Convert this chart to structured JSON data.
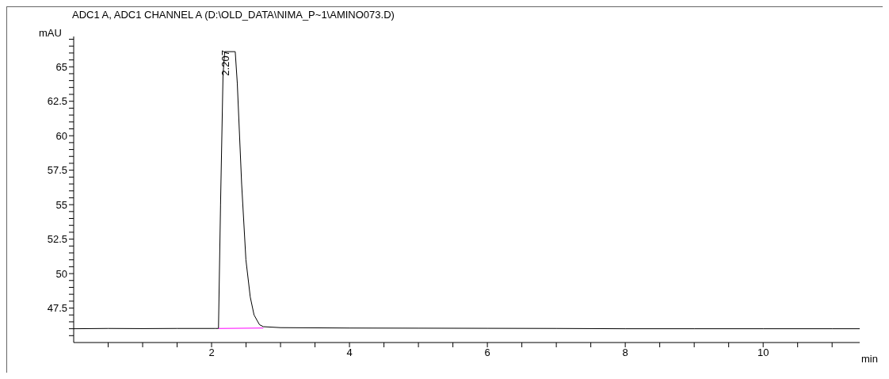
{
  "chart_data": {
    "type": "line",
    "title": "ADC1 A, ADC1 CHANNEL A (D:\\OLD_DATA\\NIMA_P~1\\AMINO073.D)",
    "xlabel": "min",
    "ylabel": "mAU",
    "series": [
      {
        "color": "#000000",
        "x": [
          0,
          0.5,
          1,
          1.5,
          2,
          2.05,
          2.1,
          2.13,
          2.166,
          2.19,
          2.343,
          2.373,
          2.436,
          2.498,
          2.561,
          2.616,
          2.694,
          2.75,
          3,
          4,
          5,
          6,
          7,
          8,
          9,
          10,
          11,
          11.4
        ],
        "values": [
          46.0,
          46.02,
          46.01,
          46.02,
          46.02,
          46.02,
          46.02,
          55.0,
          64.4,
          66.1,
          66.1,
          63.8,
          56.5,
          51.0,
          48.3,
          47.0,
          46.3,
          46.15,
          46.08,
          46.05,
          46.04,
          46.03,
          46.02,
          46.0,
          46.0,
          46.0,
          46.0,
          46.0
        ]
      },
      {
        "type": "line",
        "color": "#ff00ff",
        "x": [
          2.1,
          2.75
        ],
        "values": [
          46.02,
          46.05
        ]
      }
    ],
    "annotations": [
      {
        "text": "2.207",
        "x": 2.207,
        "y": 66.1
      }
    ],
    "xlim": [
      0,
      11.4
    ],
    "xticks": [
      {
        "value": 0.5,
        "label": null
      },
      {
        "value": 1,
        "label": null
      },
      {
        "value": 1.5,
        "label": null
      },
      2,
      {
        "value": 2.5,
        "label": null
      },
      {
        "value": 3,
        "label": null
      },
      {
        "value": 3.5,
        "label": null
      },
      4,
      {
        "value": 4.5,
        "label": null
      },
      {
        "value": 5,
        "label": null
      },
      {
        "value": 5.5,
        "label": null
      },
      6,
      {
        "value": 6.5,
        "label": null
      },
      {
        "value": 7,
        "label": null
      },
      {
        "value": 7.5,
        "label": null
      },
      8,
      {
        "value": 8.5,
        "label": null
      },
      {
        "value": 9,
        "label": null
      },
      {
        "value": 9.5,
        "label": null
      },
      10,
      {
        "value": 10.5,
        "label": null
      },
      {
        "value": 11,
        "label": null
      }
    ],
    "ylim": [
      45,
      67.2
    ],
    "yticks": [
      {
        "value": 45.5,
        "label": null
      },
      {
        "value": 46,
        "label": null
      },
      {
        "value": 46.5,
        "label": null
      },
      {
        "value": 47,
        "label": null
      },
      47.5,
      {
        "value": 48,
        "label": null
      },
      {
        "value": 48.5,
        "label": null
      },
      {
        "value": 49,
        "label": null
      },
      {
        "value": 49.5,
        "label": null
      },
      50,
      {
        "value": 50.5,
        "label": null
      },
      {
        "value": 51,
        "label": null
      },
      {
        "value": 51.5,
        "label": null
      },
      {
        "value": 52,
        "label": null
      },
      52.5,
      {
        "value": 53,
        "label": null
      },
      {
        "value": 53.5,
        "label": null
      },
      {
        "value": 54,
        "label": null
      },
      {
        "value": 54.5,
        "label": null
      },
      55,
      {
        "value": 55.5,
        "label": null
      },
      {
        "value": 56,
        "label": null
      },
      {
        "value": 56.5,
        "label": null
      },
      {
        "value": 57,
        "label": null
      },
      57.5,
      {
        "value": 58,
        "label": null
      },
      {
        "value": 58.5,
        "label": null
      },
      {
        "value": 59,
        "label": null
      },
      {
        "value": 59.5,
        "label": null
      },
      60,
      {
        "value": 60.5,
        "label": null
      },
      {
        "value": 61,
        "label": null
      },
      {
        "value": 61.5,
        "label": null
      },
      {
        "value": 62,
        "label": null
      },
      62.5,
      {
        "value": 63,
        "label": null
      },
      {
        "value": 63.5,
        "label": null
      },
      {
        "value": 64,
        "label": null
      },
      {
        "value": 64.5,
        "label": null
      },
      65,
      {
        "value": 65.5,
        "label": null
      },
      {
        "value": 66,
        "label": null
      },
      {
        "value": 66.5,
        "label": null
      },
      {
        "value": 67,
        "label": null
      }
    ],
    "marker": "none",
    "line_style": "solid"
  }
}
